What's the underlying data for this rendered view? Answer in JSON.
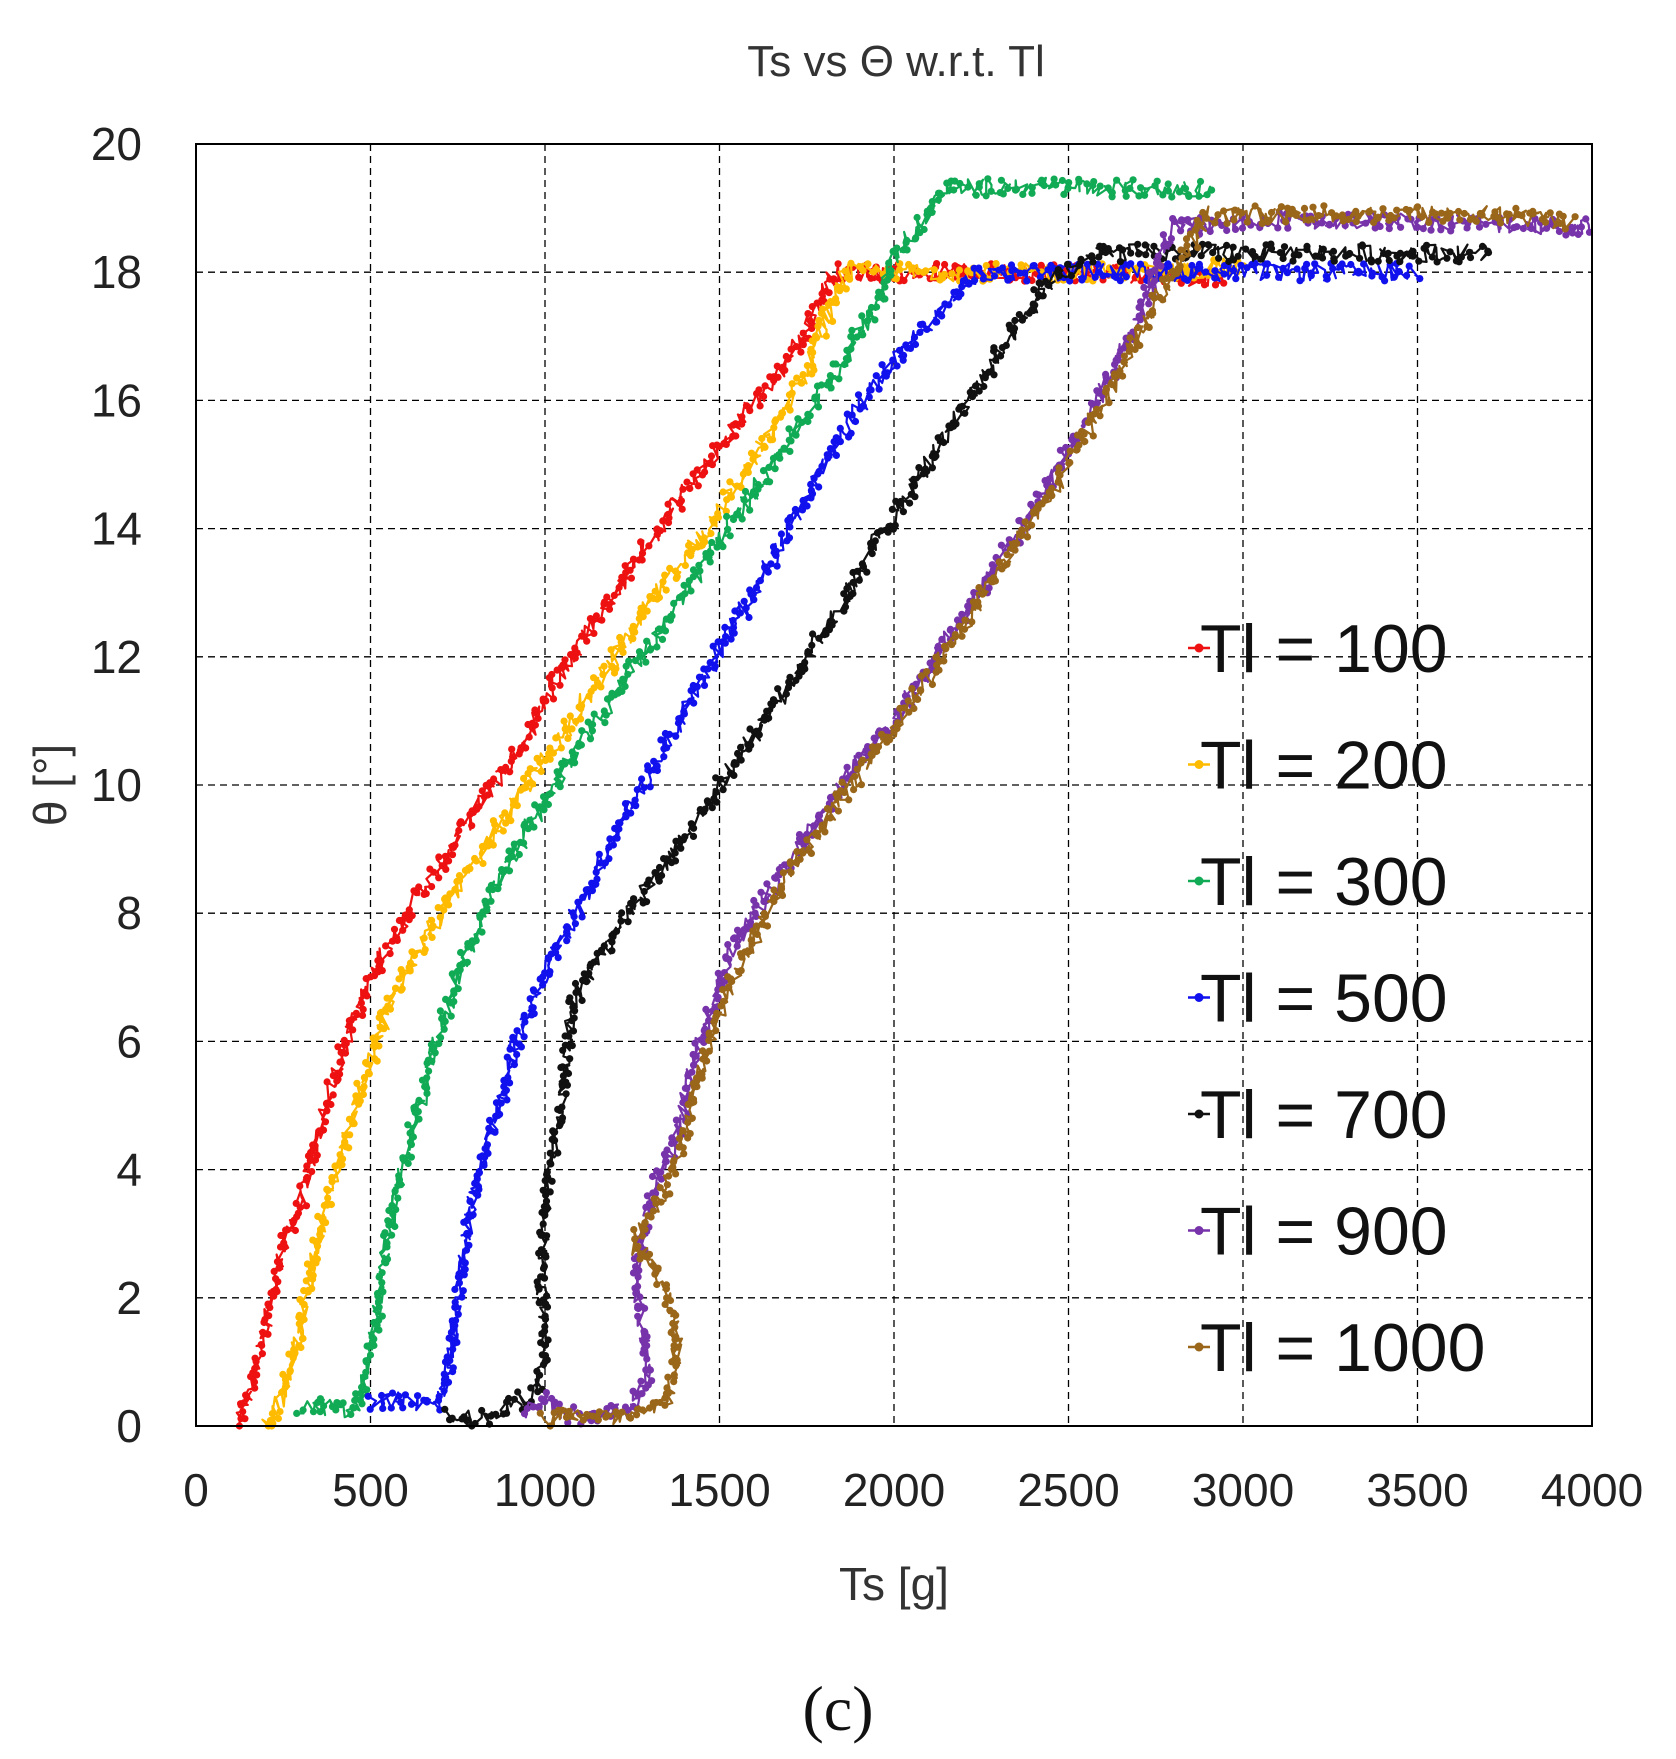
{
  "chart_data": {
    "type": "scatter",
    "title": "Ts vs Θ w.r.t. Tl",
    "xlabel": "Ts [g]",
    "ylabel": "θ [°]",
    "xlim": [
      0,
      4000
    ],
    "ylim": [
      0,
      20
    ],
    "xticks": [
      0,
      500,
      1000,
      1500,
      2000,
      2500,
      3000,
      3500,
      4000
    ],
    "yticks": [
      0,
      2,
      4,
      6,
      8,
      10,
      12,
      14,
      16,
      18,
      20
    ],
    "grid": true,
    "legend_position": "center-right",
    "series": [
      {
        "name": "Tl = 100",
        "color": "#ee1111",
        "points": [
          [
            120,
            0
          ],
          [
            150,
            0.5
          ],
          [
            200,
            1.5
          ],
          [
            250,
            2.8
          ],
          [
            300,
            3.5
          ],
          [
            350,
            4.5
          ],
          [
            400,
            5.5
          ],
          [
            450,
            6.3
          ],
          [
            500,
            7.0
          ],
          [
            560,
            7.6
          ],
          [
            640,
            8.3
          ],
          [
            720,
            8.9
          ],
          [
            780,
            9.5
          ],
          [
            850,
            10.0
          ],
          [
            950,
            10.8
          ],
          [
            1050,
            11.8
          ],
          [
            1150,
            12.6
          ],
          [
            1250,
            13.4
          ],
          [
            1350,
            14.2
          ],
          [
            1450,
            14.9
          ],
          [
            1550,
            15.6
          ],
          [
            1650,
            16.3
          ],
          [
            1750,
            17.1
          ],
          [
            1800,
            17.7
          ],
          [
            1830,
            18.0
          ],
          [
            2000,
            18.0
          ],
          [
            2300,
            18.0
          ],
          [
            2600,
            18.0
          ],
          [
            2950,
            17.9
          ]
        ]
      },
      {
        "name": "Tl = 200",
        "color": "#ffbb00",
        "points": [
          [
            200,
            0
          ],
          [
            250,
            0.5
          ],
          [
            300,
            1.5
          ],
          [
            330,
            2.5
          ],
          [
            380,
            3.5
          ],
          [
            430,
            4.5
          ],
          [
            490,
            5.5
          ],
          [
            550,
            6.5
          ],
          [
            620,
            7.3
          ],
          [
            700,
            8.0
          ],
          [
            780,
            8.6
          ],
          [
            850,
            9.2
          ],
          [
            950,
            10.0
          ],
          [
            1050,
            10.8
          ],
          [
            1150,
            11.6
          ],
          [
            1250,
            12.4
          ],
          [
            1350,
            13.2
          ],
          [
            1450,
            13.9
          ],
          [
            1550,
            14.7
          ],
          [
            1650,
            15.5
          ],
          [
            1750,
            16.5
          ],
          [
            1820,
            17.5
          ],
          [
            1860,
            18.0
          ],
          [
            2100,
            18.0
          ],
          [
            2500,
            18.0
          ],
          [
            2800,
            18.0
          ],
          [
            3000,
            18.1
          ]
        ]
      },
      {
        "name": "Tl = 300",
        "color": "#11aa55",
        "points": [
          [
            300,
            0.3
          ],
          [
            400,
            0.3
          ],
          [
            450,
            0.2
          ],
          [
            480,
            0.5
          ],
          [
            520,
            1.8
          ],
          [
            550,
            3.0
          ],
          [
            590,
            4.0
          ],
          [
            640,
            5.0
          ],
          [
            690,
            6.0
          ],
          [
            760,
            7.2
          ],
          [
            850,
            8.3
          ],
          [
            950,
            9.3
          ],
          [
            1050,
            10.2
          ],
          [
            1150,
            11.0
          ],
          [
            1250,
            11.8
          ],
          [
            1350,
            12.6
          ],
          [
            1450,
            13.4
          ],
          [
            1550,
            14.2
          ],
          [
            1650,
            15.0
          ],
          [
            1750,
            15.8
          ],
          [
            1850,
            16.6
          ],
          [
            1950,
            17.5
          ],
          [
            2000,
            18.2
          ],
          [
            2050,
            18.6
          ],
          [
            2100,
            18.9
          ],
          [
            2150,
            19.3
          ],
          [
            2400,
            19.35
          ],
          [
            2700,
            19.3
          ],
          [
            2900,
            19.3
          ]
        ]
      },
      {
        "name": "Tl = 500",
        "color": "#1111ee",
        "points": [
          [
            500,
            0.4
          ],
          [
            600,
            0.4
          ],
          [
            680,
            0.3
          ],
          [
            720,
            0.6
          ],
          [
            740,
            1.5
          ],
          [
            760,
            2.5
          ],
          [
            790,
            3.4
          ],
          [
            820,
            4.2
          ],
          [
            870,
            5.0
          ],
          [
            920,
            6.0
          ],
          [
            980,
            6.8
          ],
          [
            1050,
            7.6
          ],
          [
            1130,
            8.4
          ],
          [
            1200,
            9.2
          ],
          [
            1300,
            10.2
          ],
          [
            1400,
            11.2
          ],
          [
            1500,
            12.1
          ],
          [
            1600,
            13.0
          ],
          [
            1700,
            14.0
          ],
          [
            1800,
            15.0
          ],
          [
            1900,
            15.9
          ],
          [
            2000,
            16.6
          ],
          [
            2100,
            17.2
          ],
          [
            2200,
            17.8
          ],
          [
            2250,
            18.0
          ],
          [
            2500,
            18.0
          ],
          [
            2800,
            18.0
          ],
          [
            3200,
            18.0
          ],
          [
            3500,
            18.0
          ]
        ]
      },
      {
        "name": "Tl = 700",
        "color": "#111111",
        "points": [
          [
            720,
            0.2
          ],
          [
            800,
            0.1
          ],
          [
            870,
            0.2
          ],
          [
            930,
            0.4
          ],
          [
            980,
            0.6
          ],
          [
            1000,
            1.0
          ],
          [
            990,
            2.2
          ],
          [
            1000,
            3.2
          ],
          [
            1020,
            4.2
          ],
          [
            1050,
            5.0
          ],
          [
            1060,
            5.8
          ],
          [
            1080,
            6.6
          ],
          [
            1150,
            7.3
          ],
          [
            1250,
            8.1
          ],
          [
            1350,
            8.8
          ],
          [
            1450,
            9.6
          ],
          [
            1550,
            10.4
          ],
          [
            1650,
            11.2
          ],
          [
            1750,
            12.0
          ],
          [
            1850,
            12.8
          ],
          [
            1950,
            13.8
          ],
          [
            2050,
            14.6
          ],
          [
            2150,
            15.5
          ],
          [
            2250,
            16.3
          ],
          [
            2350,
            17.1
          ],
          [
            2450,
            17.9
          ],
          [
            2600,
            18.3
          ],
          [
            3000,
            18.3
          ],
          [
            3400,
            18.3
          ],
          [
            3700,
            18.3
          ]
        ]
      },
      {
        "name": "Tl = 900",
        "color": "#7733aa",
        "points": [
          [
            950,
            0.2
          ],
          [
            1000,
            0.4
          ],
          [
            1050,
            0.2
          ],
          [
            1150,
            0.1
          ],
          [
            1250,
            0.3
          ],
          [
            1300,
            0.8
          ],
          [
            1280,
            1.5
          ],
          [
            1260,
            2.3
          ],
          [
            1280,
            3.0
          ],
          [
            1320,
            3.8
          ],
          [
            1380,
            4.6
          ],
          [
            1420,
            5.5
          ],
          [
            1460,
            6.3
          ],
          [
            1520,
            7.2
          ],
          [
            1600,
            8.0
          ],
          [
            1700,
            8.8
          ],
          [
            1800,
            9.6
          ],
          [
            1900,
            10.4
          ],
          [
            2000,
            11.0
          ],
          [
            2100,
            11.8
          ],
          [
            2200,
            12.6
          ],
          [
            2300,
            13.5
          ],
          [
            2400,
            14.3
          ],
          [
            2500,
            15.2
          ],
          [
            2600,
            16.2
          ],
          [
            2700,
            17.2
          ],
          [
            2760,
            18.2
          ],
          [
            2800,
            18.7
          ],
          [
            3100,
            18.8
          ],
          [
            3500,
            18.8
          ],
          [
            4000,
            18.7
          ]
        ]
      },
      {
        "name": "Tl = 1000",
        "color": "#99661a",
        "points": [
          [
            1000,
            0.1
          ],
          [
            1100,
            0.2
          ],
          [
            1200,
            0.1
          ],
          [
            1300,
            0.2
          ],
          [
            1360,
            0.5
          ],
          [
            1380,
            1.3
          ],
          [
            1350,
            2.0
          ],
          [
            1300,
            2.6
          ],
          [
            1250,
            2.8
          ],
          [
            1300,
            3.2
          ],
          [
            1370,
            4.0
          ],
          [
            1420,
            5.0
          ],
          [
            1460,
            5.9
          ],
          [
            1540,
            7.0
          ],
          [
            1620,
            7.8
          ],
          [
            1700,
            8.6
          ],
          [
            1800,
            9.4
          ],
          [
            1900,
            10.2
          ],
          [
            2000,
            10.9
          ],
          [
            2100,
            11.7
          ],
          [
            2200,
            12.5
          ],
          [
            2300,
            13.3
          ],
          [
            2400,
            14.2
          ],
          [
            2500,
            15.0
          ],
          [
            2600,
            16.0
          ],
          [
            2700,
            17.0
          ],
          [
            2800,
            18.0
          ],
          [
            2900,
            18.9
          ],
          [
            3300,
            18.9
          ],
          [
            3700,
            18.9
          ],
          [
            3950,
            18.8
          ]
        ]
      }
    ]
  },
  "caption": "(c)"
}
